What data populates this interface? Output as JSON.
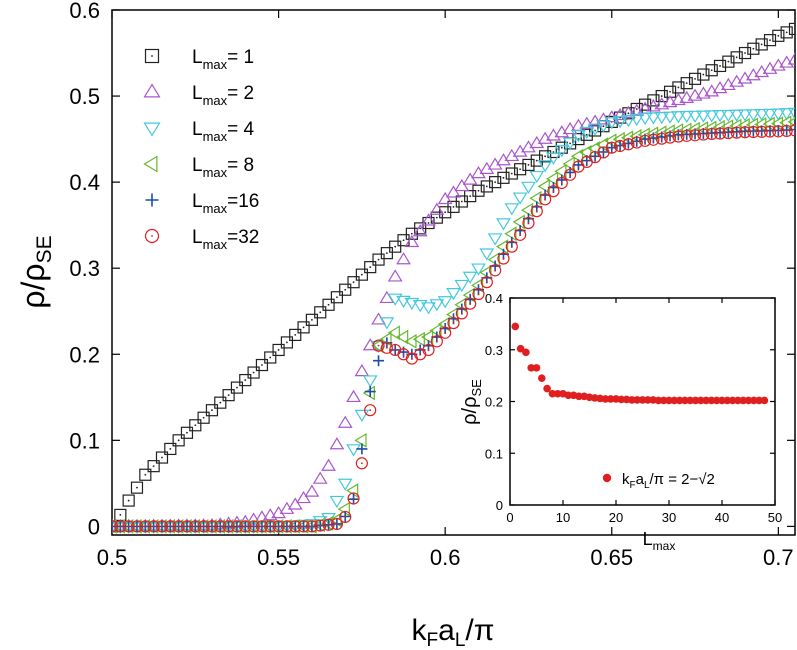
{
  "chart_data": [
    {
      "type": "scatter",
      "title": "",
      "xlabel": {
        "base": "k",
        "sub1": "F",
        "mid": "a",
        "sub2": "L",
        "tail": "/π"
      },
      "ylabel": {
        "base": "ρ/ρ",
        "sub": "SE"
      },
      "xlim": [
        0.5,
        0.705
      ],
      "ylim": [
        -0.01,
        0.6
      ],
      "x_ticks": [
        "0.5",
        "0.55",
        "0.6",
        "0.65",
        "0.7"
      ],
      "x_tick_values": [
        0.5,
        0.55,
        0.6,
        0.65,
        0.7
      ],
      "y_ticks": [
        "0",
        "0.1",
        "0.2",
        "0.3",
        "0.4",
        "0.5",
        "0.6"
      ],
      "y_tick_values": [
        0,
        0.1,
        0.2,
        0.3,
        0.4,
        0.5,
        0.6
      ],
      "legend_position": "top-left",
      "series": [
        {
          "name": "Lmax=1",
          "label_base": "L",
          "label_sub": "max",
          "label_tail": "= 1",
          "color": "#222222",
          "marker": "square-dot",
          "points": [
            [
              0.5,
              0.0
            ],
            [
              0.502,
              0.01
            ],
            [
              0.505,
              0.03
            ],
            [
              0.51,
              0.06
            ],
            [
              0.52,
              0.1
            ],
            [
              0.53,
              0.135
            ],
            [
              0.54,
              0.17
            ],
            [
              0.55,
              0.205
            ],
            [
              0.56,
              0.24
            ],
            [
              0.57,
              0.275
            ],
            [
              0.58,
              0.31
            ],
            [
              0.59,
              0.34
            ],
            [
              0.6,
              0.365
            ],
            [
              0.61,
              0.39
            ],
            [
              0.62,
              0.41
            ],
            [
              0.63,
              0.43
            ],
            [
              0.64,
              0.45
            ],
            [
              0.65,
              0.47
            ],
            [
              0.66,
              0.49
            ],
            [
              0.67,
              0.51
            ],
            [
              0.68,
              0.53
            ],
            [
              0.69,
              0.55
            ],
            [
              0.7,
              0.57
            ],
            [
              0.705,
              0.578
            ]
          ]
        },
        {
          "name": "Lmax=2",
          "label_base": "L",
          "label_sub": "max",
          "label_tail": "= 2",
          "color": "#aa55cc",
          "marker": "triangle-up",
          "points": [
            [
              0.5,
              0.0
            ],
            [
              0.53,
              0.001
            ],
            [
              0.54,
              0.005
            ],
            [
              0.55,
              0.015
            ],
            [
              0.555,
              0.025
            ],
            [
              0.56,
              0.04
            ],
            [
              0.565,
              0.07
            ],
            [
              0.57,
              0.12
            ],
            [
              0.575,
              0.18
            ],
            [
              0.58,
              0.24
            ],
            [
              0.585,
              0.29
            ],
            [
              0.59,
              0.33
            ],
            [
              0.6,
              0.38
            ],
            [
              0.61,
              0.41
            ],
            [
              0.62,
              0.43
            ],
            [
              0.63,
              0.45
            ],
            [
              0.64,
              0.465
            ],
            [
              0.65,
              0.475
            ],
            [
              0.66,
              0.485
            ],
            [
              0.67,
              0.495
            ],
            [
              0.68,
              0.505
            ],
            [
              0.69,
              0.52
            ],
            [
              0.7,
              0.535
            ],
            [
              0.705,
              0.542
            ]
          ]
        },
        {
          "name": "Lmax=4",
          "label_base": "L",
          "label_sub": "max",
          "label_tail": "= 4",
          "color": "#44c8dd",
          "marker": "triangle-down",
          "points": [
            [
              0.5,
              0.0
            ],
            [
              0.55,
              0.0
            ],
            [
              0.56,
              0.003
            ],
            [
              0.565,
              0.01
            ],
            [
              0.57,
              0.05
            ],
            [
              0.575,
              0.13
            ],
            [
              0.58,
              0.21
            ],
            [
              0.585,
              0.265
            ],
            [
              0.59,
              0.26
            ],
            [
              0.595,
              0.255
            ],
            [
              0.6,
              0.262
            ],
            [
              0.61,
              0.3
            ],
            [
              0.62,
              0.37
            ],
            [
              0.63,
              0.42
            ],
            [
              0.64,
              0.455
            ],
            [
              0.65,
              0.47
            ],
            [
              0.66,
              0.475
            ],
            [
              0.67,
              0.477
            ],
            [
              0.68,
              0.478
            ],
            [
              0.69,
              0.479
            ],
            [
              0.7,
              0.48
            ],
            [
              0.705,
              0.481
            ]
          ]
        },
        {
          "name": "Lmax=8",
          "label_base": "L",
          "label_sub": "max",
          "label_tail": "= 8",
          "color": "#66b82e",
          "marker": "triangle-left",
          "points": [
            [
              0.5,
              0.0
            ],
            [
              0.56,
              0.0
            ],
            [
              0.567,
              0.005
            ],
            [
              0.572,
              0.03
            ],
            [
              0.575,
              0.1
            ],
            [
              0.58,
              0.21
            ],
            [
              0.585,
              0.225
            ],
            [
              0.59,
              0.215
            ],
            [
              0.595,
              0.22
            ],
            [
              0.6,
              0.235
            ],
            [
              0.61,
              0.28
            ],
            [
              0.62,
              0.34
            ],
            [
              0.63,
              0.395
            ],
            [
              0.64,
              0.43
            ],
            [
              0.65,
              0.448
            ],
            [
              0.66,
              0.455
            ],
            [
              0.67,
              0.46
            ],
            [
              0.68,
              0.463
            ],
            [
              0.69,
              0.466
            ],
            [
              0.7,
              0.468
            ],
            [
              0.705,
              0.47
            ]
          ]
        },
        {
          "name": "Lmax=16",
          "label_base": "L",
          "label_sub": "max",
          "label_tail": "=16",
          "color": "#1a4fa8",
          "marker": "plus",
          "points": [
            [
              0.5,
              0.0
            ],
            [
              0.56,
              0.0
            ],
            [
              0.568,
              0.003
            ],
            [
              0.572,
              0.02
            ],
            [
              0.575,
              0.09
            ],
            [
              0.578,
              0.17
            ],
            [
              0.582,
              0.215
            ],
            [
              0.585,
              0.205
            ],
            [
              0.59,
              0.2
            ],
            [
              0.595,
              0.21
            ],
            [
              0.6,
              0.23
            ],
            [
              0.61,
              0.275
            ],
            [
              0.62,
              0.33
            ],
            [
              0.63,
              0.385
            ],
            [
              0.64,
              0.42
            ],
            [
              0.65,
              0.44
            ],
            [
              0.66,
              0.45
            ],
            [
              0.67,
              0.455
            ],
            [
              0.68,
              0.457
            ],
            [
              0.69,
              0.459
            ],
            [
              0.7,
              0.46
            ],
            [
              0.705,
              0.461
            ]
          ]
        },
        {
          "name": "Lmax=32",
          "label_base": "L",
          "label_sub": "max",
          "label_tail": "=32",
          "color": "#e02020",
          "marker": "circle",
          "points": [
            [
              0.5,
              0.0
            ],
            [
              0.56,
              0.0
            ],
            [
              0.568,
              0.003
            ],
            [
              0.571,
              0.015
            ],
            [
              0.574,
              0.05
            ],
            [
              0.577,
              0.12
            ],
            [
              0.58,
              0.21
            ],
            [
              0.585,
              0.205
            ],
            [
              0.59,
              0.195
            ],
            [
              0.595,
              0.205
            ],
            [
              0.6,
              0.225
            ],
            [
              0.61,
              0.27
            ],
            [
              0.62,
              0.325
            ],
            [
              0.63,
              0.38
            ],
            [
              0.64,
              0.418
            ],
            [
              0.65,
              0.44
            ],
            [
              0.66,
              0.448
            ],
            [
              0.67,
              0.453
            ],
            [
              0.68,
              0.456
            ],
            [
              0.69,
              0.458
            ],
            [
              0.7,
              0.459
            ],
            [
              0.705,
              0.46
            ]
          ]
        }
      ]
    },
    {
      "type": "scatter",
      "title": "",
      "xlabel": {
        "base": "L",
        "sub": "max"
      },
      "ylabel": {
        "base": "ρ/ρ",
        "sub": "SE"
      },
      "xlim": [
        0,
        50
      ],
      "ylim": [
        0,
        0.4
      ],
      "x_ticks": [
        "0",
        "10",
        "20",
        "30",
        "40",
        "50"
      ],
      "x_tick_values": [
        0,
        10,
        20,
        30,
        40,
        50
      ],
      "y_ticks": [
        "0",
        "0.1",
        "0.2",
        "0.3",
        "0.4"
      ],
      "y_tick_values": [
        0,
        0.1,
        0.2,
        0.3,
        0.4
      ],
      "legend_position": "bottom-right",
      "series": [
        {
          "name": "kFaL/π = 2−√2",
          "label_parts": [
            "k",
            "F",
            "a",
            "L",
            "/π = 2−√2"
          ],
          "color": "#e02020",
          "marker": "filled-circle",
          "points": [
            [
              1,
              0.345
            ],
            [
              2,
              0.302
            ],
            [
              3,
              0.295
            ],
            [
              4,
              0.265
            ],
            [
              5,
              0.265
            ],
            [
              6,
              0.245
            ],
            [
              7,
              0.225
            ],
            [
              8,
              0.215
            ],
            [
              9,
              0.215
            ],
            [
              10,
              0.215
            ],
            [
              11,
              0.212
            ],
            [
              12,
              0.212
            ],
            [
              13,
              0.21
            ],
            [
              14,
              0.21
            ],
            [
              15,
              0.208
            ],
            [
              16,
              0.207
            ],
            [
              17,
              0.206
            ],
            [
              18,
              0.205
            ],
            [
              19,
              0.205
            ],
            [
              20,
              0.205
            ],
            [
              21,
              0.204
            ],
            [
              22,
              0.204
            ],
            [
              23,
              0.203
            ],
            [
              24,
              0.203
            ],
            [
              25,
              0.203
            ],
            [
              26,
              0.203
            ],
            [
              27,
              0.203
            ],
            [
              28,
              0.202
            ],
            [
              29,
              0.202
            ],
            [
              30,
              0.202
            ],
            [
              31,
              0.202
            ],
            [
              32,
              0.202
            ],
            [
              33,
              0.202
            ],
            [
              34,
              0.202
            ],
            [
              35,
              0.202
            ],
            [
              36,
              0.202
            ],
            [
              37,
              0.202
            ],
            [
              38,
              0.202
            ],
            [
              39,
              0.202
            ],
            [
              40,
              0.202
            ],
            [
              41,
              0.202
            ],
            [
              42,
              0.202
            ],
            [
              43,
              0.202
            ],
            [
              44,
              0.202
            ],
            [
              45,
              0.202
            ],
            [
              46,
              0.202
            ],
            [
              47,
              0.202
            ],
            [
              48,
              0.202
            ]
          ]
        }
      ]
    }
  ]
}
